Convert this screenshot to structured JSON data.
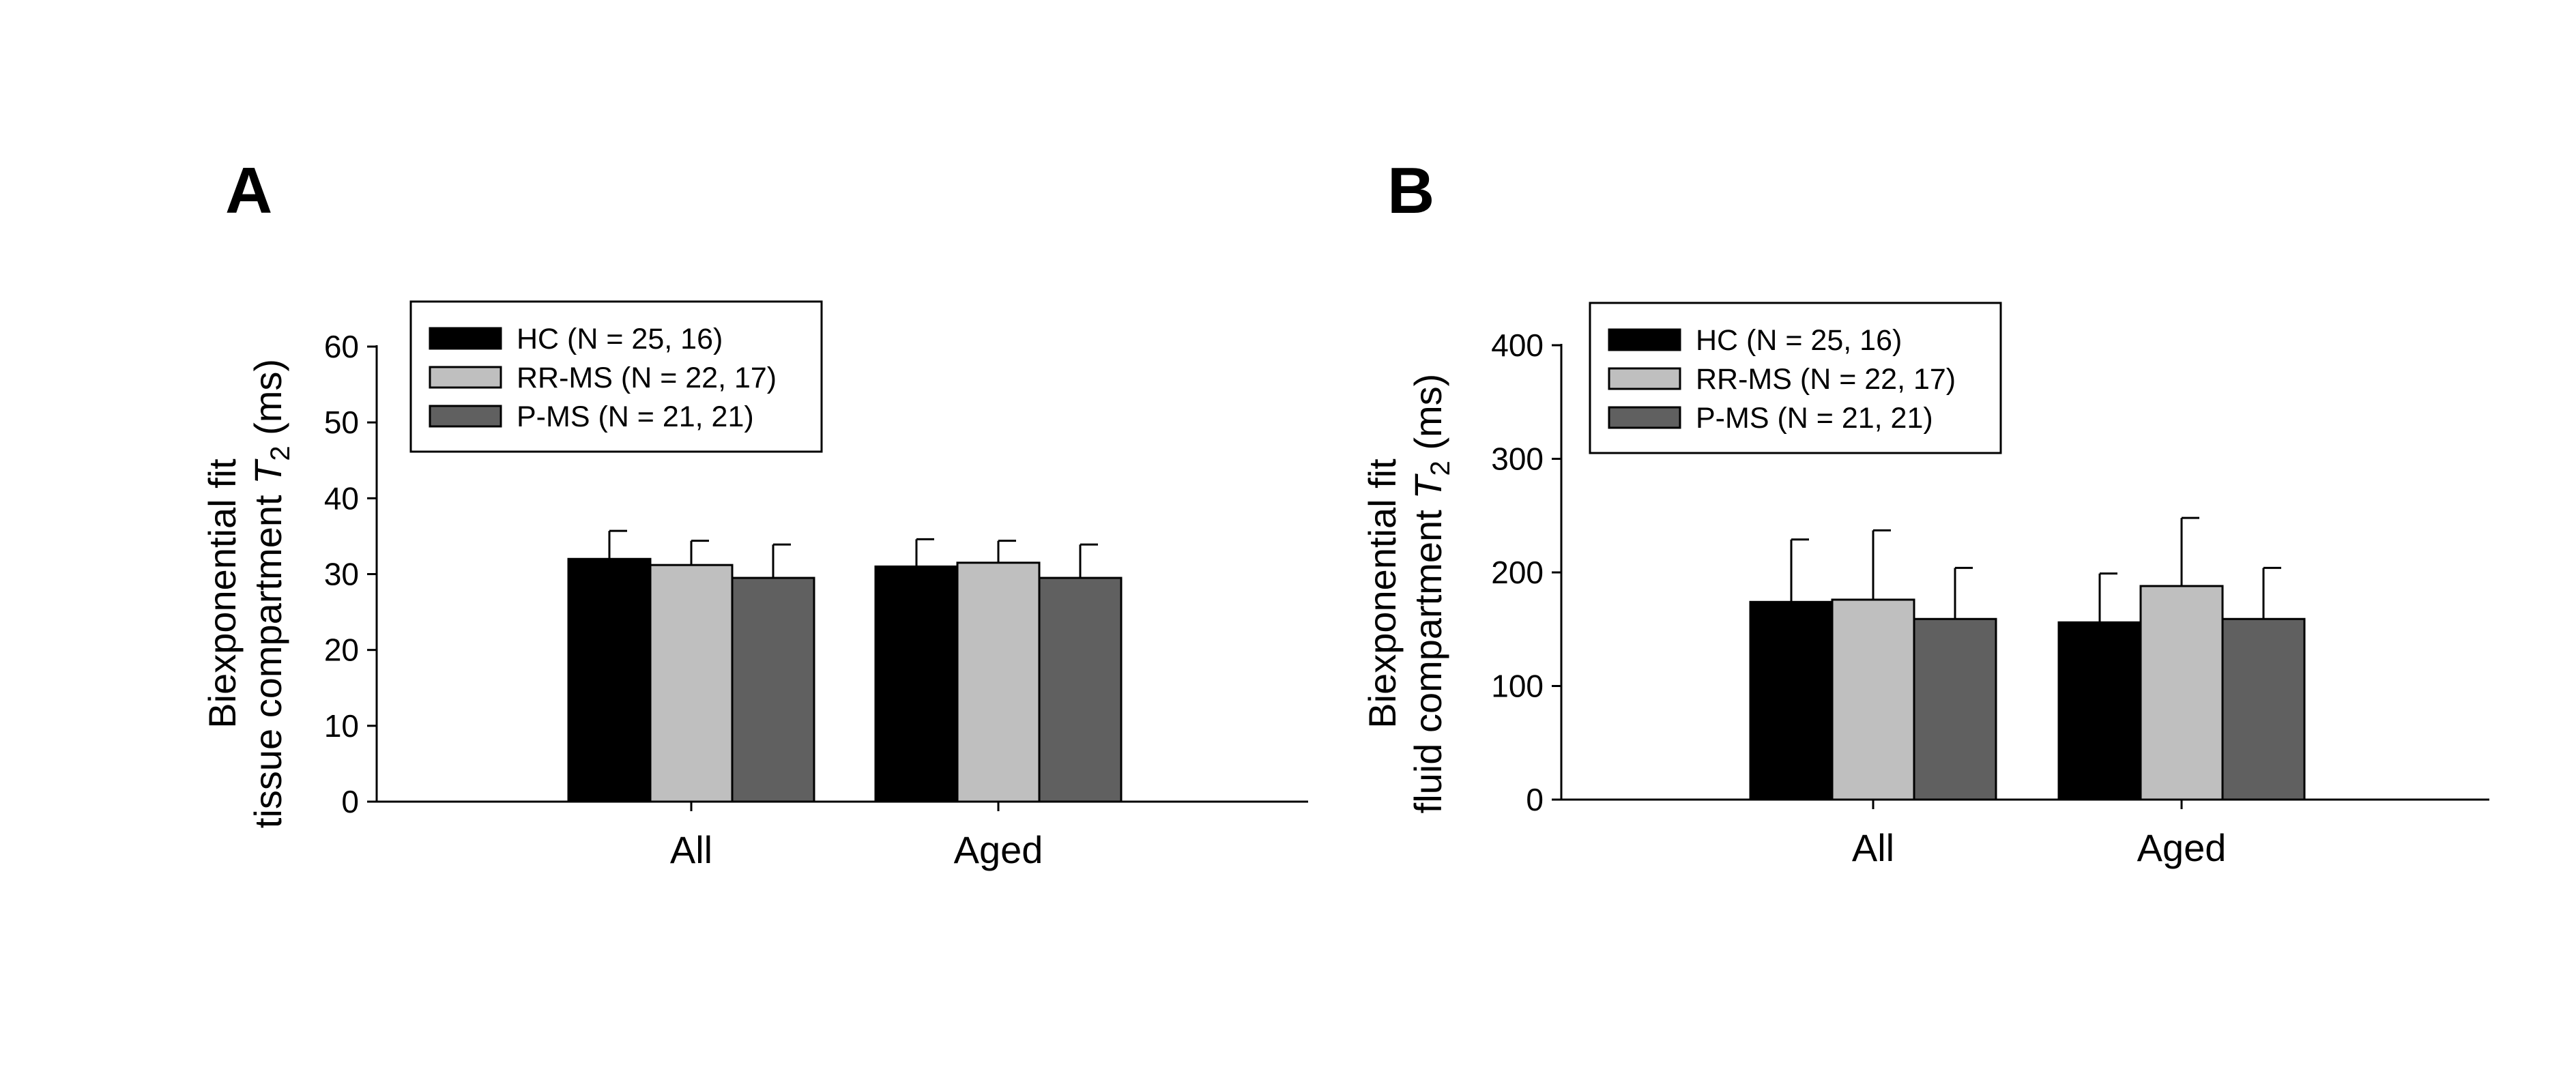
{
  "chart_data": [
    {
      "panel": "A",
      "type": "bar",
      "ylabel_line1": "Biexponential fit",
      "ylabel_line2_prefix": "tissue compartment ",
      "ylabel_italic": "T",
      "ylabel_sub": "2",
      "ylabel_suffix": " (ms)",
      "ylim": [
        0,
        60
      ],
      "yticks": [
        0,
        10,
        20,
        30,
        40,
        50,
        60
      ],
      "categories": [
        "All",
        "Aged"
      ],
      "series": [
        {
          "name": "HC (N = 25, 16)",
          "color": "#000000",
          "values": [
            32,
            31
          ],
          "errors": [
            3.7,
            3.6
          ]
        },
        {
          "name": "RR-MS (N = 22, 17)",
          "color": "#bfbfbf",
          "values": [
            31.2,
            31.5
          ],
          "errors": [
            3.2,
            2.9
          ]
        },
        {
          "name": "P-MS (N = 21, 21)",
          "color": "#606060",
          "values": [
            29.5,
            29.5
          ],
          "errors": [
            4.4,
            4.4
          ]
        }
      ],
      "legend_position": "top-left"
    },
    {
      "panel": "B",
      "type": "bar",
      "ylabel_line1": "Biexponential fit",
      "ylabel_line2_prefix": "fluid compartment ",
      "ylabel_italic": "T",
      "ylabel_sub": "2",
      "ylabel_suffix": " (ms)",
      "ylim": [
        0,
        400
      ],
      "yticks": [
        0,
        100,
        200,
        300,
        400
      ],
      "categories": [
        "All",
        "Aged"
      ],
      "series": [
        {
          "name": "HC (N = 25, 16)",
          "color": "#000000",
          "values": [
            174,
            156
          ],
          "errors": [
            55,
            43
          ]
        },
        {
          "name": "RR-MS (N = 22, 17)",
          "color": "#bfbfbf",
          "values": [
            176,
            188
          ],
          "errors": [
            61,
            60
          ]
        },
        {
          "name": "P-MS (N = 21, 21)",
          "color": "#606060",
          "values": [
            159,
            159
          ],
          "errors": [
            45,
            45
          ]
        }
      ],
      "legend_position": "top-left"
    }
  ]
}
